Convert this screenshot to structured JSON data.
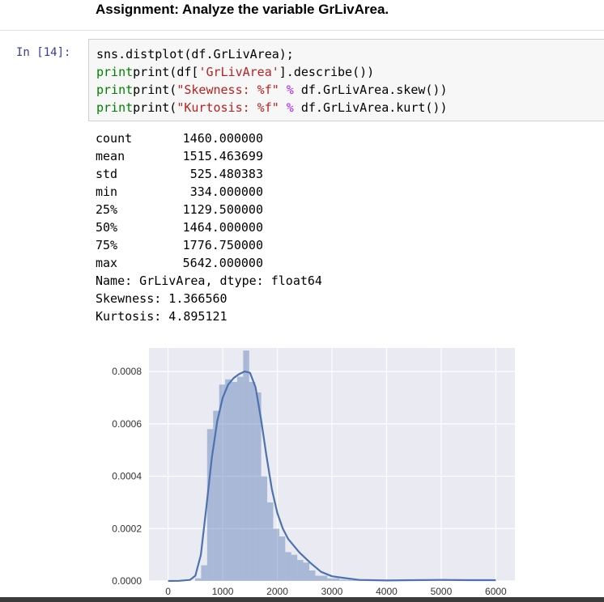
{
  "heading": "Assignment: Analyze the variable GrLivArea.",
  "prompt": "In [14]:",
  "code": {
    "line1": "sns.distplot(df.GrLivArea);",
    "line2_a": "print(df[",
    "line2_s": "'GrLivArea'",
    "line2_b": "].describe())",
    "line3_a": "print(",
    "line3_s": "\"Skewness: %f\"",
    "line3_o": " % ",
    "line3_b": "df.GrLivArea.skew())",
    "line4_a": "print(",
    "line4_s": "\"Kurtosis: %f\"",
    "line4_o": " % ",
    "line4_b": "df.GrLivArea.kurt())"
  },
  "describe": [
    {
      "label": "count",
      "value": "1460.000000"
    },
    {
      "label": "mean",
      "value": "1515.463699"
    },
    {
      "label": "std",
      "value": "525.480383"
    },
    {
      "label": "min",
      "value": "334.000000"
    },
    {
      "label": "25%",
      "value": "1129.500000"
    },
    {
      "label": "50%",
      "value": "1464.000000"
    },
    {
      "label": "75%",
      "value": "1776.750000"
    },
    {
      "label": "max",
      "value": "5642.000000"
    }
  ],
  "name_line": "Name: GrLivArea, dtype: float64",
  "skew_line": "Skewness: 1.366560",
  "kurt_line": "Kurtosis: 4.895121",
  "chart_data": {
    "type": "bar",
    "xlim": [
      -350,
      6350
    ],
    "ylim": [
      0,
      0.00089
    ],
    "xticks": [
      "0",
      "1000",
      "2000",
      "3000",
      "4000",
      "5000",
      "6000"
    ],
    "xtick_values": [
      0,
      1000,
      2000,
      3000,
      4000,
      5000,
      6000
    ],
    "yticks": [
      "0.0000",
      "0.0002",
      "0.0004",
      "0.0006",
      "0.0008"
    ],
    "ytick_values": [
      0,
      0.0002,
      0.0004,
      0.0006,
      0.0008
    ],
    "bin_width": 110,
    "bins_x": [
      550,
      660,
      770,
      880,
      990,
      1100,
      1210,
      1320,
      1430,
      1540,
      1650,
      1760,
      1870,
      1980,
      2090,
      2200,
      2310,
      2420,
      2530,
      2640,
      2750,
      2860,
      2970,
      3080,
      3190,
      3300,
      3410,
      3520,
      3630,
      3740,
      3850,
      3960,
      4070,
      4180,
      4290,
      4400,
      4510,
      4620,
      4730,
      4840,
      4950,
      5060,
      5170,
      5280,
      5390,
      5500,
      5610
    ],
    "bins_values": [
      1e-05,
      6e-05,
      0.00058,
      0.00065,
      0.00075,
      0.00077,
      0.00076,
      0.00078,
      0.00088,
      0.00076,
      0.00072,
      0.0004,
      0.0003,
      0.0002,
      0.00017,
      0.00011,
      0.0001,
      8e-05,
      7e-05,
      4e-05,
      2e-05,
      2e-05,
      1e-05,
      1e-05,
      5e-06,
      4e-06,
      3e-06,
      2e-06,
      2e-06,
      2e-06,
      1e-06,
      1e-06,
      1e-06,
      1e-06,
      1e-06,
      1e-06,
      1e-06,
      1e-06,
      2e-06,
      1e-06,
      1e-06,
      1e-06,
      5e-07,
      5e-07,
      5e-07,
      5e-07,
      2e-06
    ],
    "kde_x": [
      0,
      200,
      400,
      500,
      600,
      700,
      800,
      900,
      1000,
      1100,
      1200,
      1300,
      1400,
      1500,
      1600,
      1700,
      1800,
      1900,
      2000,
      2100,
      2200,
      2400,
      2600,
      2800,
      3000,
      3200,
      3500,
      4000,
      4500,
      5000,
      5500,
      6000
    ],
    "kde_y": [
      0,
      5e-07,
      4e-06,
      2e-05,
      0.0001,
      0.00028,
      0.00047,
      0.00061,
      0.0007,
      0.00075,
      0.000775,
      0.00079,
      0.0008,
      0.000795,
      0.00074,
      0.00062,
      0.00048,
      0.00035,
      0.00026,
      0.0002,
      0.00016,
      0.00011,
      7e-05,
      3.5e-05,
      1.8e-05,
      1.2e-05,
      4e-06,
      2e-06,
      3e-06,
      4e-06,
      3e-06,
      3e-06
    ]
  }
}
